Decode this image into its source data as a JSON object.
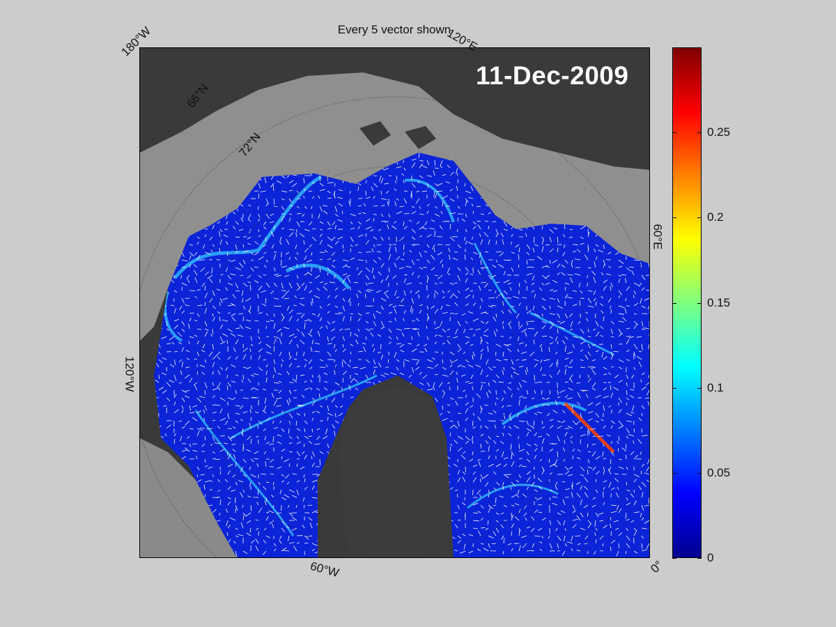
{
  "figure": {
    "title": "Every 5 vector shown",
    "date": "11-Dec-2009"
  },
  "map": {
    "projection": "north polar stereographic",
    "labels": {
      "lon_180w": "180°W",
      "lon_120e": "120°E",
      "lon_60e": "60°E",
      "lon_120w": "120°W",
      "lon_60w": "60°W",
      "lon_0": "0°",
      "lat_66n": "66°N",
      "lat_72n": "72°N"
    },
    "colors": {
      "land": "#3a3a3a",
      "open_water": "#909090",
      "ice_low": "#0a1fd6",
      "ice_mid": "#2fb6ff",
      "vectors": "#ffffff"
    }
  },
  "colorbar": {
    "colormap": "jet",
    "min": 0,
    "max": 0.3,
    "ticks": [
      "0",
      "0.05",
      "0.1",
      "0.15",
      "0.2",
      "0.25"
    ]
  }
}
